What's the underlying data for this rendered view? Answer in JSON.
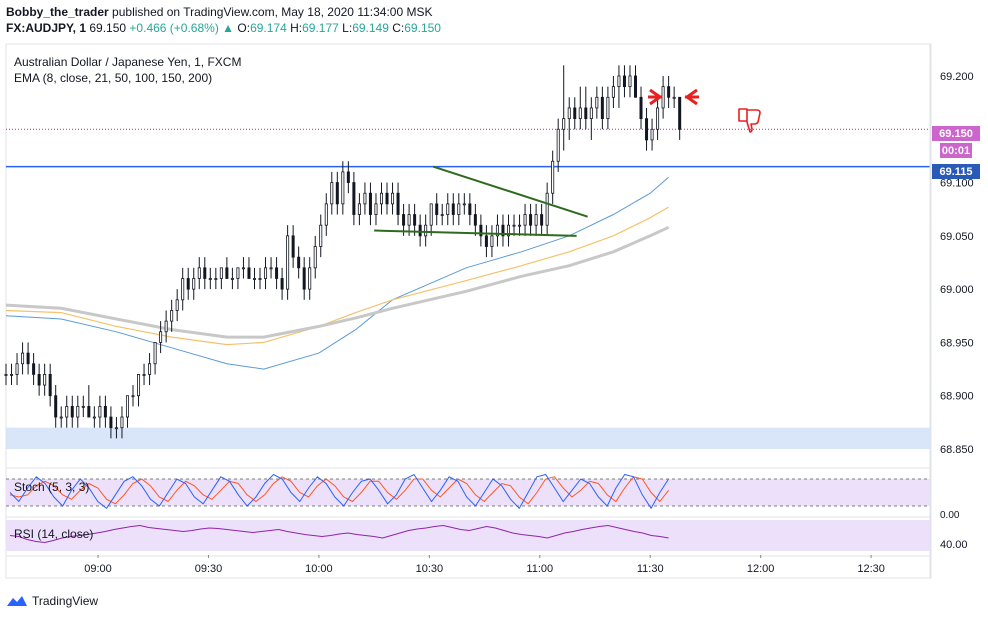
{
  "header": {
    "author": "Bobby_the_trader",
    "published": "published on TradingView.com, May 18, 2020 11:34:00 MSK",
    "symbol": "FX:AUDJPY, 1",
    "last": "69.150",
    "change": "+0.466 (+0.68%)",
    "open_label": "O:",
    "open": "69.174",
    "high_label": "H:",
    "high": "69.177",
    "low_label": "L:",
    "low": "69.149",
    "close_label": "C:",
    "close": "69.150"
  },
  "legend": {
    "title": "Australian Dollar / Japanese Yen, 1, FXCM",
    "ema": "EMA (8, close, 21, 50, 100, 150, 200)",
    "stoch": "Stoch (5, 3, 3)",
    "rsi": "RSI (14, close)"
  },
  "footer": {
    "brand": "TradingView"
  },
  "colors": {
    "up": "#26a69a",
    "candle": "#131722",
    "level": "#2962ff",
    "last_price_tag": "#cc66cc",
    "level_tag": "#2a5ab8",
    "ema_blue": "#5b9bd5",
    "ema_orange": "#f5c26b",
    "ema_gray": "#c8c8c8",
    "triangle": "#2e6b1f",
    "annotation": "#e82020",
    "stoch_k": "#2962ff",
    "stoch_d": "#ff5722",
    "rsi_line": "#8e24aa"
  },
  "icons": [
    "thumbs-down-icon",
    "arrow-right-icon",
    "arrow-left-icon",
    "tradingview-logo-icon"
  ],
  "chart_data": {
    "type": "candlestick",
    "y_ticks": [
      "69.200",
      "69.150",
      "69.100",
      "69.050",
      "69.000",
      "68.950",
      "68.900",
      "68.850"
    ],
    "y_tick_values": [
      69.2,
      69.15,
      69.1,
      69.05,
      69.0,
      68.95,
      68.9,
      68.85
    ],
    "ylim": [
      68.835,
      69.23
    ],
    "x_ticks": [
      "09:00",
      "09:30",
      "10:00",
      "10:30",
      "11:00",
      "11:30",
      "12:00",
      "12:30"
    ],
    "x_tick_minutes": [
      540,
      570,
      600,
      630,
      660,
      690,
      720,
      750
    ],
    "xlim_minutes": [
      515,
      766
    ],
    "last_price": {
      "value": 69.15,
      "label": "69.150",
      "countdown": "00:01"
    },
    "level": {
      "value": 69.115,
      "label": "69.115"
    },
    "support_zone": [
      68.85,
      68.87
    ],
    "candles_ohlc": [
      [
        68.92,
        68.93,
        68.91,
        68.92
      ],
      [
        68.92,
        68.93,
        68.91,
        68.92
      ],
      [
        68.92,
        68.94,
        68.91,
        68.93
      ],
      [
        68.93,
        68.95,
        68.92,
        68.94
      ],
      [
        68.94,
        68.95,
        68.92,
        68.93
      ],
      [
        68.93,
        68.94,
        68.91,
        68.92
      ],
      [
        68.92,
        68.93,
        68.9,
        68.91
      ],
      [
        68.91,
        68.93,
        68.9,
        68.92
      ],
      [
        68.92,
        68.93,
        68.89,
        68.9
      ],
      [
        68.9,
        68.91,
        68.87,
        68.88
      ],
      [
        68.88,
        68.89,
        68.87,
        68.88
      ],
      [
        68.88,
        68.9,
        68.87,
        68.89
      ],
      [
        68.89,
        68.9,
        68.87,
        68.88
      ],
      [
        68.88,
        68.9,
        68.87,
        68.89
      ],
      [
        68.89,
        68.9,
        68.88,
        68.89
      ],
      [
        68.89,
        68.91,
        68.88,
        68.88
      ],
      [
        68.88,
        68.89,
        68.87,
        68.88
      ],
      [
        68.88,
        68.9,
        68.87,
        68.89
      ],
      [
        68.89,
        68.9,
        68.87,
        68.88
      ],
      [
        68.88,
        68.89,
        68.86,
        68.87
      ],
      [
        68.87,
        68.88,
        68.86,
        68.87
      ],
      [
        68.87,
        68.89,
        68.86,
        68.88
      ],
      [
        68.88,
        68.9,
        68.87,
        68.9
      ],
      [
        68.9,
        68.91,
        68.89,
        68.9
      ],
      [
        68.9,
        68.92,
        68.89,
        68.92
      ],
      [
        68.92,
        68.93,
        68.91,
        68.92
      ],
      [
        68.92,
        68.94,
        68.91,
        68.93
      ],
      [
        68.93,
        68.95,
        68.92,
        68.95
      ],
      [
        68.95,
        68.97,
        68.94,
        68.96
      ],
      [
        68.96,
        68.98,
        68.95,
        68.97
      ],
      [
        68.97,
        68.99,
        68.96,
        68.98
      ],
      [
        68.98,
        69.0,
        68.97,
        68.99
      ],
      [
        68.99,
        69.02,
        68.98,
        69.01
      ],
      [
        69.01,
        69.02,
        68.99,
        69.0
      ],
      [
        69.0,
        69.02,
        68.99,
        69.01
      ],
      [
        69.01,
        69.03,
        69.0,
        69.02
      ],
      [
        69.02,
        69.03,
        69.0,
        69.01
      ],
      [
        69.01,
        69.02,
        69.0,
        69.01
      ],
      [
        69.01,
        69.02,
        69.0,
        69.01
      ],
      [
        69.01,
        69.02,
        69.0,
        69.02
      ],
      [
        69.02,
        69.03,
        69.01,
        69.01
      ],
      [
        69.01,
        69.02,
        69.0,
        69.01
      ],
      [
        69.01,
        69.02,
        69.0,
        69.02
      ],
      [
        69.02,
        69.03,
        69.01,
        69.02
      ],
      [
        69.02,
        69.03,
        69.01,
        69.01
      ],
      [
        69.01,
        69.02,
        69.0,
        69.01
      ],
      [
        69.01,
        69.02,
        69.0,
        69.01
      ],
      [
        69.01,
        69.03,
        69.0,
        69.02
      ],
      [
        69.02,
        69.03,
        69.01,
        69.02
      ],
      [
        69.02,
        69.03,
        69.0,
        69.01
      ],
      [
        69.01,
        69.02,
        68.99,
        69.0
      ],
      [
        69.0,
        69.06,
        68.99,
        69.05
      ],
      [
        69.05,
        69.06,
        69.02,
        69.03
      ],
      [
        69.03,
        69.04,
        69.01,
        69.02
      ],
      [
        69.02,
        69.03,
        68.99,
        69.0
      ],
      [
        69.0,
        69.03,
        68.99,
        69.02
      ],
      [
        69.02,
        69.05,
        69.01,
        69.04
      ],
      [
        69.04,
        69.07,
        69.03,
        69.06
      ],
      [
        69.06,
        69.09,
        69.05,
        69.08
      ],
      [
        69.08,
        69.11,
        69.07,
        69.1
      ],
      [
        69.1,
        69.11,
        69.07,
        69.08
      ],
      [
        69.08,
        69.12,
        69.07,
        69.11
      ],
      [
        69.11,
        69.12,
        69.09,
        69.1
      ],
      [
        69.1,
        69.11,
        69.06,
        69.07
      ],
      [
        69.07,
        69.09,
        69.06,
        69.08
      ],
      [
        69.08,
        69.1,
        69.07,
        69.09
      ],
      [
        69.09,
        69.1,
        69.06,
        69.07
      ],
      [
        69.07,
        69.09,
        69.06,
        69.08
      ],
      [
        69.08,
        69.1,
        69.07,
        69.09
      ],
      [
        69.09,
        69.1,
        69.07,
        69.08
      ],
      [
        69.08,
        69.1,
        69.07,
        69.09
      ],
      [
        69.09,
        69.1,
        69.06,
        69.07
      ],
      [
        69.07,
        69.08,
        69.05,
        69.06
      ],
      [
        69.06,
        69.08,
        69.05,
        69.07
      ],
      [
        69.07,
        69.08,
        69.05,
        69.06
      ],
      [
        69.06,
        69.07,
        69.04,
        69.05
      ],
      [
        69.05,
        69.07,
        69.04,
        69.06
      ],
      [
        69.06,
        69.08,
        69.05,
        69.08
      ],
      [
        69.08,
        69.09,
        69.06,
        69.07
      ],
      [
        69.07,
        69.08,
        69.06,
        69.07
      ],
      [
        69.07,
        69.09,
        69.06,
        69.08
      ],
      [
        69.08,
        69.09,
        69.06,
        69.07
      ],
      [
        69.07,
        69.09,
        69.06,
        69.08
      ],
      [
        69.08,
        69.09,
        69.07,
        69.08
      ],
      [
        69.08,
        69.09,
        69.06,
        69.07
      ],
      [
        69.07,
        69.08,
        69.05,
        69.06
      ],
      [
        69.06,
        69.07,
        69.04,
        69.05
      ],
      [
        69.05,
        69.06,
        69.03,
        69.04
      ],
      [
        69.04,
        69.06,
        69.03,
        69.05
      ],
      [
        69.05,
        69.07,
        69.04,
        69.06
      ],
      [
        69.06,
        69.07,
        69.04,
        69.05
      ],
      [
        69.05,
        69.07,
        69.04,
        69.06
      ],
      [
        69.06,
        69.07,
        69.05,
        69.06
      ],
      [
        69.06,
        69.07,
        69.05,
        69.06
      ],
      [
        69.06,
        69.08,
        69.05,
        69.07
      ],
      [
        69.07,
        69.08,
        69.05,
        69.06
      ],
      [
        69.06,
        69.08,
        69.05,
        69.07
      ],
      [
        69.07,
        69.08,
        69.05,
        69.06
      ],
      [
        69.06,
        69.1,
        69.05,
        69.09
      ],
      [
        69.09,
        69.13,
        69.08,
        69.12
      ],
      [
        69.12,
        69.16,
        69.11,
        69.15
      ],
      [
        69.15,
        69.21,
        69.13,
        69.16
      ],
      [
        69.16,
        69.18,
        69.14,
        69.17
      ],
      [
        69.17,
        69.18,
        69.15,
        69.16
      ],
      [
        69.16,
        69.19,
        69.15,
        69.17
      ],
      [
        69.17,
        69.19,
        69.15,
        69.16
      ],
      [
        69.16,
        69.18,
        69.14,
        69.17
      ],
      [
        69.17,
        69.19,
        69.16,
        69.18
      ],
      [
        69.18,
        69.19,
        69.15,
        69.16
      ],
      [
        69.16,
        69.19,
        69.15,
        69.18
      ],
      [
        69.18,
        69.2,
        69.17,
        69.19
      ],
      [
        69.19,
        69.21,
        69.17,
        69.2
      ],
      [
        69.2,
        69.21,
        69.18,
        69.19
      ],
      [
        69.19,
        69.21,
        69.18,
        69.2
      ],
      [
        69.2,
        69.21,
        69.18,
        69.18
      ],
      [
        69.18,
        69.19,
        69.15,
        69.16
      ],
      [
        69.16,
        69.17,
        69.13,
        69.14
      ],
      [
        69.14,
        69.16,
        69.13,
        69.15
      ],
      [
        69.15,
        69.18,
        69.14,
        69.17
      ],
      [
        69.17,
        69.2,
        69.16,
        69.19
      ],
      [
        69.19,
        69.2,
        69.17,
        69.18
      ],
      [
        69.18,
        69.19,
        69.17,
        69.18
      ],
      [
        69.18,
        69.18,
        69.14,
        69.15
      ]
    ],
    "ema_series": [
      {
        "color": "blue",
        "points": [
          [
            515,
            68.975
          ],
          [
            530,
            68.972
          ],
          [
            545,
            68.96
          ],
          [
            560,
            68.945
          ],
          [
            575,
            68.93
          ],
          [
            585,
            68.925
          ],
          [
            600,
            68.94
          ],
          [
            610,
            68.962
          ],
          [
            620,
            68.99
          ],
          [
            640,
            69.02
          ],
          [
            655,
            69.035
          ],
          [
            668,
            69.05
          ],
          [
            680,
            69.07
          ],
          [
            690,
            69.09
          ],
          [
            695,
            69.105
          ]
        ]
      },
      {
        "color": "orange",
        "points": [
          [
            515,
            68.98
          ],
          [
            530,
            68.978
          ],
          [
            545,
            68.965
          ],
          [
            560,
            68.955
          ],
          [
            575,
            68.948
          ],
          [
            585,
            68.95
          ],
          [
            600,
            68.965
          ],
          [
            610,
            68.978
          ],
          [
            620,
            68.99
          ],
          [
            640,
            69.008
          ],
          [
            655,
            69.022
          ],
          [
            668,
            69.035
          ],
          [
            680,
            69.05
          ],
          [
            690,
            69.067
          ],
          [
            695,
            69.077
          ]
        ]
      },
      {
        "color": "gray",
        "points": [
          [
            515,
            68.985
          ],
          [
            530,
            68.982
          ],
          [
            545,
            68.972
          ],
          [
            560,
            68.962
          ],
          [
            575,
            68.955
          ],
          [
            585,
            68.955
          ],
          [
            600,
            68.965
          ],
          [
            610,
            68.973
          ],
          [
            620,
            68.982
          ],
          [
            640,
            68.998
          ],
          [
            655,
            69.012
          ],
          [
            668,
            69.022
          ],
          [
            680,
            69.035
          ],
          [
            690,
            69.05
          ],
          [
            695,
            69.058
          ]
        ]
      }
    ],
    "triangle_lines": [
      {
        "from": [
          615,
          69.055
        ],
        "to": [
          670,
          69.05
        ]
      },
      {
        "from": [
          631,
          69.115
        ],
        "to": [
          673,
          69.068
        ]
      }
    ],
    "stoch": {
      "ylim": [
        0,
        100
      ],
      "bands": [
        20,
        80
      ],
      "k": [
        50,
        30,
        60,
        85,
        70,
        40,
        20,
        55,
        80,
        60,
        30,
        15,
        45,
        75,
        85,
        65,
        35,
        20,
        50,
        80,
        70,
        40,
        25,
        55,
        85,
        75,
        45,
        20,
        40,
        70,
        90,
        80,
        50,
        30,
        60,
        85,
        70,
        40,
        20,
        50,
        75,
        80,
        55,
        25,
        45,
        80,
        90,
        60,
        30,
        55,
        85,
        75,
        40,
        20,
        50,
        80,
        65,
        35,
        15,
        50,
        85,
        90,
        60,
        30,
        55,
        80,
        70,
        40,
        20,
        60,
        90,
        85,
        45,
        15,
        50,
        80
      ],
      "d": [
        45,
        40,
        45,
        65,
        75,
        65,
        45,
        35,
        55,
        70,
        60,
        35,
        25,
        45,
        70,
        80,
        65,
        40,
        30,
        55,
        75,
        65,
        45,
        35,
        55,
        75,
        70,
        45,
        30,
        45,
        70,
        85,
        75,
        50,
        40,
        65,
        80,
        65,
        40,
        30,
        50,
        75,
        75,
        50,
        35,
        55,
        80,
        80,
        55,
        40,
        60,
        80,
        70,
        45,
        30,
        50,
        70,
        65,
        40,
        25,
        50,
        80,
        85,
        60,
        40,
        55,
        75,
        70,
        45,
        30,
        60,
        85,
        80,
        50,
        30,
        55
      ]
    },
    "rsi": {
      "ticks": [
        "0.00",
        "40.00"
      ],
      "ylim": [
        15,
        85
      ],
      "values": [
        50,
        48,
        42,
        38,
        36,
        40,
        45,
        48,
        50,
        52,
        55,
        58,
        62,
        65,
        68,
        70,
        66,
        64,
        62,
        60,
        58,
        60,
        63,
        65,
        64,
        62,
        60,
        58,
        56,
        58,
        60,
        62,
        58,
        55,
        52,
        50,
        48,
        50,
        53,
        55,
        52,
        50,
        48,
        45,
        50,
        55,
        60,
        63,
        65,
        68,
        70,
        66,
        62,
        60,
        64,
        68,
        65,
        60,
        55,
        52,
        50,
        48,
        45,
        50,
        55,
        58,
        62,
        65,
        68,
        70,
        66,
        62,
        58,
        55,
        50,
        48,
        45
      ]
    }
  }
}
